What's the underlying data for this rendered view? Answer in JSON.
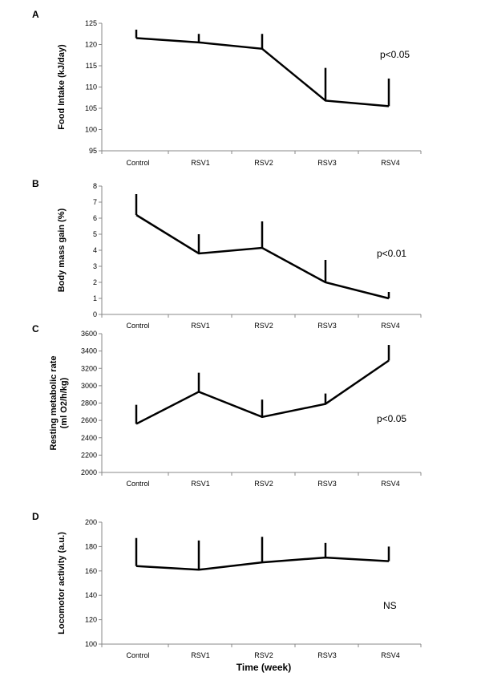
{
  "x_axis_title": "Time (week)",
  "chart_data": [
    {
      "panel": "A",
      "type": "line",
      "categories": [
        "Control",
        "RSV1",
        "RSV2",
        "RSV3",
        "RSV4"
      ],
      "values": [
        121.5,
        120.5,
        119.0,
        106.8,
        105.5
      ],
      "error_upper": [
        123.5,
        122.5,
        122.5,
        114.5,
        112.0
      ],
      "ylabel": "Food Intake (kJ/day)",
      "ylim": [
        95,
        125
      ],
      "yticks": [
        "95",
        "100",
        "105",
        "110",
        "115",
        "120",
        "125"
      ],
      "annotation": "p<0.05"
    },
    {
      "panel": "B",
      "type": "line",
      "categories": [
        "Control",
        "RSV1",
        "RSV2",
        "RSV3",
        "RSV4"
      ],
      "values": [
        6.2,
        3.8,
        4.15,
        2.0,
        1.0
      ],
      "error_upper": [
        7.5,
        5.0,
        5.8,
        3.4,
        1.4
      ],
      "ylabel": "Body mass gain (%)",
      "ylim": [
        0,
        8
      ],
      "yticks": [
        "0",
        "1",
        "2",
        "3",
        "4",
        "5",
        "6",
        "7",
        "8"
      ],
      "annotation": "p<0.01"
    },
    {
      "panel": "C",
      "type": "line",
      "categories": [
        "Control",
        "RSV1",
        "RSV2",
        "RSV3",
        "RSV4"
      ],
      "values": [
        2560,
        2930,
        2640,
        2790,
        3290
      ],
      "error_upper": [
        2780,
        3150,
        2840,
        2910,
        3470
      ],
      "ylabel": [
        "Resting metabolic rate",
        "(ml O2/h/kg)"
      ],
      "ylim": [
        2000,
        3600
      ],
      "yticks": [
        "2000",
        "2200",
        "2400",
        "2600",
        "2800",
        "3000",
        "3200",
        "3400",
        "3600"
      ],
      "annotation": "p<0.05"
    },
    {
      "panel": "D",
      "type": "line",
      "categories": [
        "Control",
        "RSV1",
        "RSV2",
        "RSV3",
        "RSV4"
      ],
      "values": [
        164,
        161,
        167,
        171,
        168
      ],
      "error_upper": [
        187,
        185,
        188,
        183,
        180
      ],
      "ylabel": "Locomotor activity (a.u.)",
      "ylim": [
        100,
        200
      ],
      "yticks": [
        "100",
        "120",
        "140",
        "160",
        "180",
        "200"
      ],
      "annotation": "NS"
    }
  ]
}
